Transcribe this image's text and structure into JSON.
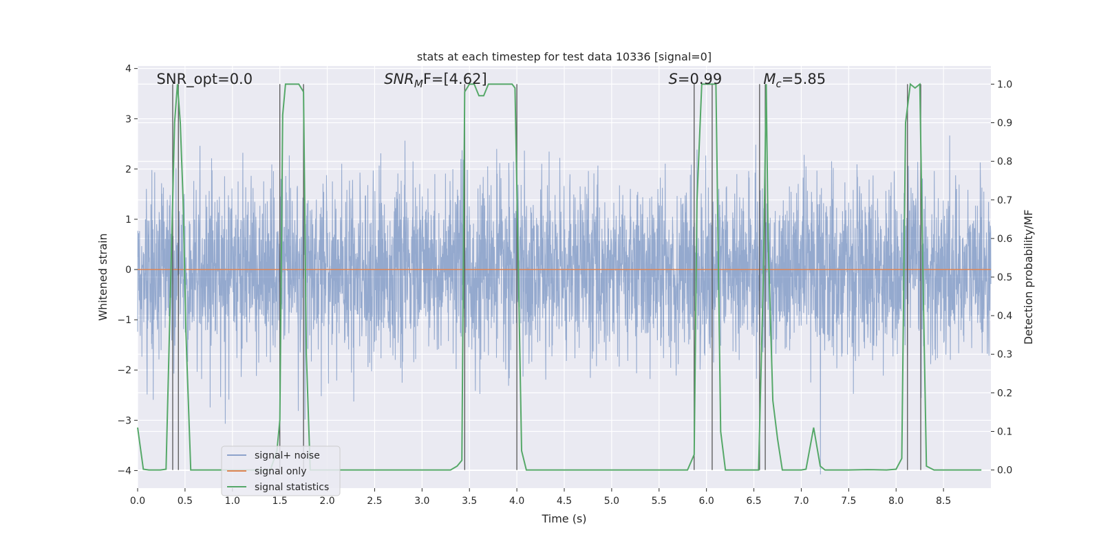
{
  "chart_data": {
    "type": "line",
    "title": "stats at each timestep for test data 10336 [signal=0]",
    "xlabel": "Time (s)",
    "ylabel": "Whitened strain",
    "y2label": "Detection probability/MF",
    "xlim": [
      0.0,
      9.0
    ],
    "ylim": [
      -4.35,
      4.05
    ],
    "y2lim": [
      -0.047,
      1.047
    ],
    "x_ticks": [
      "0.0",
      "0.5",
      "1.0",
      "1.5",
      "2.0",
      "2.5",
      "3.0",
      "3.5",
      "4.0",
      "4.5",
      "5.0",
      "5.5",
      "6.0",
      "6.5",
      "7.0",
      "7.5",
      "8.0",
      "8.5"
    ],
    "y_ticks": [
      "4",
      "3",
      "2",
      "1",
      "0",
      "−1",
      "−2",
      "−3",
      "−4"
    ],
    "y2_ticks": [
      "1.0",
      "0.9",
      "0.8",
      "0.7",
      "0.6",
      "0.5",
      "0.4",
      "0.3",
      "0.2",
      "0.1",
      "0.0"
    ],
    "grid": true,
    "legend_position": "lower-left",
    "annotations": [
      {
        "prefix": "SNR_opt=",
        "value": "0.0",
        "x": 0.2
      },
      {
        "prefix": "SNR",
        "sub": "M",
        "suffix": "F=[4.62]",
        "x": 2.6,
        "italic": true
      },
      {
        "prefix": "S",
        "suffix": "=0.99",
        "x": 5.6,
        "italic": true
      },
      {
        "prefix": "M",
        "sub": "c",
        "suffix": "=5.85",
        "x": 6.6,
        "italic": true
      }
    ],
    "series": [
      {
        "name": "signal+ noise",
        "color": "#4c72b0",
        "opacity": 0.55,
        "envelope": {
          "dt": 0.0025,
          "sigma": 0.85,
          "max": 3.7,
          "min": -4.35
        }
      },
      {
        "name": "signal only",
        "color": "#dd8452",
        "x": [
          0.0,
          9.0
        ],
        "y": [
          0.0,
          0.0
        ]
      },
      {
        "name": "signal statistics",
        "color": "#55a868",
        "axis": "right",
        "x": [
          0.0,
          0.06,
          0.12,
          0.18,
          0.24,
          0.3,
          0.36,
          0.39,
          0.42,
          0.45,
          0.48,
          0.51,
          0.56,
          0.62,
          0.7,
          0.8,
          0.9,
          1.0,
          1.1,
          1.2,
          1.3,
          1.4,
          1.47,
          1.5,
          1.53,
          1.56,
          1.6,
          1.65,
          1.7,
          1.75,
          1.78,
          1.82,
          1.9,
          2.0,
          2.5,
          3.0,
          3.3,
          3.37,
          3.42,
          3.45,
          3.5,
          3.55,
          3.6,
          3.65,
          3.7,
          3.75,
          3.8,
          3.9,
          3.95,
          3.98,
          4.01,
          4.05,
          4.1,
          4.2,
          4.5,
          5.0,
          5.5,
          5.8,
          5.87,
          5.9,
          5.95,
          6.0,
          6.05,
          6.1,
          6.15,
          6.2,
          6.3,
          6.5,
          6.55,
          6.6,
          6.63,
          6.65,
          6.7,
          6.75,
          6.8,
          6.9,
          7.0,
          7.05,
          7.13,
          7.2,
          7.25,
          7.5,
          7.7,
          7.9,
          8.0,
          8.06,
          8.1,
          8.15,
          8.2,
          8.25,
          8.28,
          8.32,
          8.4,
          8.6,
          8.9
        ],
        "y": [
          0.11,
          0.002,
          0.0,
          0.0,
          0.0,
          0.002,
          0.6,
          0.9,
          1.0,
          0.9,
          0.7,
          0.35,
          0.0,
          0.0,
          0.0,
          0.0,
          0.0,
          0.0,
          0.0,
          0.0,
          0.0,
          0.0,
          0.05,
          0.13,
          0.92,
          1.0,
          1.0,
          1.0,
          1.0,
          0.98,
          0.3,
          0.0,
          0.0,
          0.0,
          0.0,
          0.0,
          0.0,
          0.01,
          0.025,
          0.98,
          1.0,
          1.0,
          0.97,
          0.97,
          1.0,
          1.0,
          1.0,
          1.0,
          1.0,
          0.99,
          0.6,
          0.05,
          0.0,
          0.0,
          0.0,
          0.0,
          0.0,
          0.0,
          0.04,
          0.7,
          1.0,
          1.0,
          1.0,
          1.0,
          0.1,
          0.0,
          0.0,
          0.0,
          0.0,
          0.5,
          1.0,
          0.6,
          0.18,
          0.08,
          0.0,
          0.0,
          0.0,
          0.002,
          0.11,
          0.01,
          0.0,
          0.0,
          0.001,
          0.0,
          0.002,
          0.03,
          0.9,
          1.0,
          0.99,
          1.0,
          0.55,
          0.01,
          0.0,
          0.0,
          0.0
        ]
      }
    ],
    "vlines": [
      0.37,
      0.43,
      1.5,
      1.75,
      3.45,
      4.0,
      5.87,
      6.06,
      6.56,
      6.62,
      8.12,
      8.26
    ]
  }
}
